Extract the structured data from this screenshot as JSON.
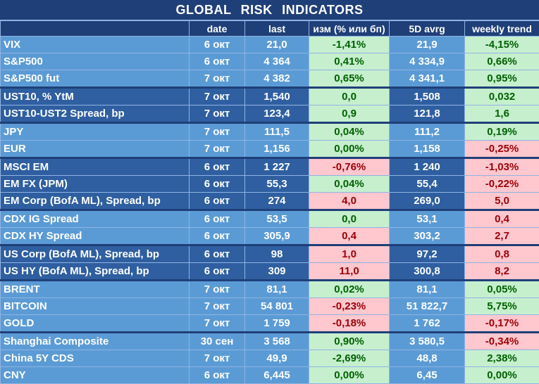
{
  "title": "GLOBAL   RISK   INDICATORS",
  "headers": {
    "name": "",
    "date": "date",
    "last": "last",
    "change": "изм (% или бп)",
    "avg": "5D avrg",
    "weekly": "weekly trend"
  },
  "colors": {
    "header_bg": "#1f3f78",
    "row_light": "#5b9bd5",
    "row_dark": "#2f5fa0",
    "positive_bg": "#c6efce",
    "positive_text": "#006100",
    "negative_bg": "#ffc7ce",
    "negative_text": "#9c0006"
  },
  "rows": [
    {
      "name": "VIX",
      "date": "6 окт",
      "last": "21,0",
      "change": "-1,41%",
      "change_sign": "pos",
      "avg": "21,9",
      "weekly": "-4,15%",
      "weekly_sign": "pos"
    },
    {
      "name": "S&P500",
      "date": "6 окт",
      "last": "4 364",
      "change": "0,41%",
      "change_sign": "pos",
      "avg": "4 334,9",
      "weekly": "0,66%",
      "weekly_sign": "pos"
    },
    {
      "name": "S&P500 fut",
      "date": "7 окт",
      "last": "4 382",
      "change": "0,65%",
      "change_sign": "pos",
      "avg": "4 341,1",
      "weekly": "0,95%",
      "weekly_sign": "pos"
    },
    {
      "name": "UST10, % YtM",
      "date": "7 окт",
      "last": "1,540",
      "change": "0,0",
      "change_sign": "pos",
      "avg": "1,508",
      "weekly": "0,032",
      "weekly_sign": "pos"
    },
    {
      "name": "UST10-UST2 Spread, bp",
      "date": "7 окт",
      "last": "123,4",
      "change": "0,9",
      "change_sign": "pos",
      "avg": "121,8",
      "weekly": "1,6",
      "weekly_sign": "pos"
    },
    {
      "name": "JPY",
      "date": "7 окт",
      "last": "111,5",
      "change": "0,04%",
      "change_sign": "pos",
      "avg": "111,2",
      "weekly": "0,19%",
      "weekly_sign": "pos"
    },
    {
      "name": "EUR",
      "date": "7 окт",
      "last": "1,156",
      "change": "0,00%",
      "change_sign": "pos",
      "avg": "1,158",
      "weekly": "-0,25%",
      "weekly_sign": "neg"
    },
    {
      "name": "MSCI EM",
      "date": "6 окт",
      "last": "1 227",
      "change": "-0,76%",
      "change_sign": "neg",
      "avg": "1 240",
      "weekly": "-1,03%",
      "weekly_sign": "neg"
    },
    {
      "name": "EM FX (JPM)",
      "date": "6 окт",
      "last": "55,3",
      "change": "0,04%",
      "change_sign": "pos",
      "avg": "55,4",
      "weekly": "-0,22%",
      "weekly_sign": "neg"
    },
    {
      "name": "EM Corp (BofA ML), Spread, bp",
      "date": "6 окт",
      "last": "274",
      "change": "4,0",
      "change_sign": "neg",
      "avg": "269,0",
      "weekly": "5,0",
      "weekly_sign": "neg"
    },
    {
      "name": "CDX IG Spread",
      "date": "6 окт",
      "last": "53,5",
      "change": "0,0",
      "change_sign": "pos",
      "avg": "53,1",
      "weekly": "0,4",
      "weekly_sign": "neg"
    },
    {
      "name": "CDX HY Spread",
      "date": "6 окт",
      "last": "305,9",
      "change": "0,4",
      "change_sign": "neg",
      "avg": "303,2",
      "weekly": "2,7",
      "weekly_sign": "neg"
    },
    {
      "name": "US Corp (BofA ML), Spread, bp",
      "date": "6 окт",
      "last": "98",
      "change": "1,0",
      "change_sign": "neg",
      "avg": "97,2",
      "weekly": "0,8",
      "weekly_sign": "neg"
    },
    {
      "name": "US HY (BofA ML), Spread, bp",
      "date": "6 окт",
      "last": "309",
      "change": "11,0",
      "change_sign": "neg",
      "avg": "300,8",
      "weekly": "8,2",
      "weekly_sign": "neg"
    },
    {
      "name": "BRENT",
      "date": "7 окт",
      "last": "81,1",
      "change": "0,02%",
      "change_sign": "pos",
      "avg": "81,1",
      "weekly": "0,05%",
      "weekly_sign": "pos"
    },
    {
      "name": "BITCOIN",
      "date": "7 окт",
      "last": "54 801",
      "change": "-0,23%",
      "change_sign": "neg",
      "avg": "51 822,7",
      "weekly": "5,75%",
      "weekly_sign": "pos"
    },
    {
      "name": "GOLD",
      "date": "7 окт",
      "last": "1 759",
      "change": "-0,18%",
      "change_sign": "neg",
      "avg": "1 762",
      "weekly": "-0,17%",
      "weekly_sign": "neg"
    },
    {
      "name": "Shanghai Composite",
      "date": "30 сен",
      "last": "3 568",
      "change": "0,90%",
      "change_sign": "pos",
      "avg": "3 580,5",
      "weekly": "-0,34%",
      "weekly_sign": "neg"
    },
    {
      "name": "China 5Y CDS",
      "date": "7 окт",
      "last": "49,9",
      "change": "-2,69%",
      "change_sign": "pos",
      "avg": "48,8",
      "weekly": "2,38%",
      "weekly_sign": "pos"
    },
    {
      "name": "CNY",
      "date": "6 окт",
      "last": "6,445",
      "change": "0,00%",
      "change_sign": "pos",
      "avg": "6,45",
      "weekly": "0,00%",
      "weekly_sign": "pos"
    }
  ]
}
